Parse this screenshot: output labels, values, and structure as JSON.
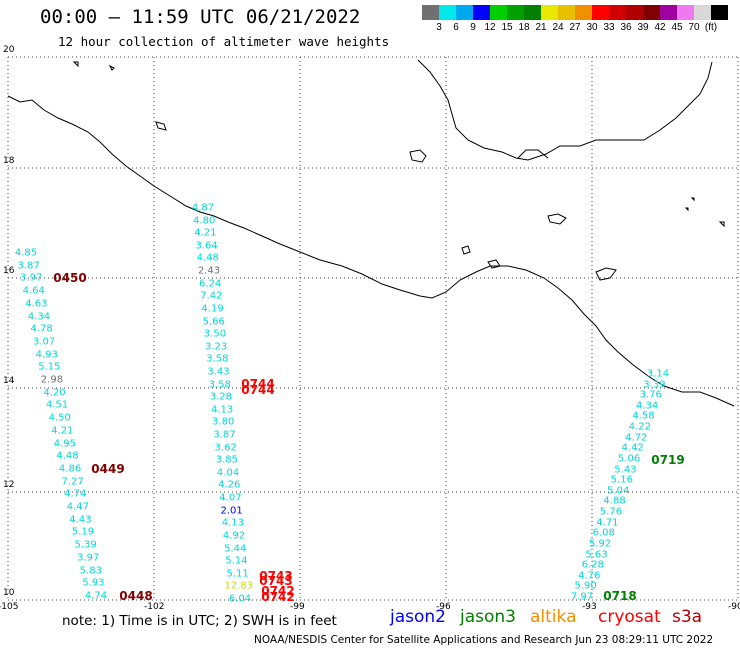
{
  "title": "00:00 — 11:59 UTC 06/21/2022",
  "subtitle": "12 hour collection of altimeter wave heights",
  "colorbar": {
    "colors": [
      "#707070",
      "#00e8e8",
      "#00a8f0",
      "#0000ff",
      "#00d000",
      "#00a000",
      "#008000",
      "#e8e800",
      "#e8c000",
      "#f09000",
      "#ff0000",
      "#d00000",
      "#b00000",
      "#800000",
      "#a000a0",
      "#f078f0",
      "#d8d8d8",
      "#000000"
    ],
    "labels": [
      "3",
      "6",
      "9",
      "12",
      "15",
      "18",
      "21",
      "24",
      "27",
      "30",
      "33",
      "36",
      "39",
      "42",
      "45",
      "70",
      "(ft)"
    ]
  },
  "axes": {
    "lat_labels": [
      "20",
      "18",
      "16",
      "14",
      "12",
      "10"
    ],
    "lon_labels": [
      "-105",
      "-102",
      "-99",
      "-96",
      "-93",
      "-90"
    ]
  },
  "passes": [
    {
      "label": "0450",
      "color": "#800000"
    },
    {
      "label": "0449",
      "color": "#800000"
    },
    {
      "label": "0448",
      "color": "#800000"
    },
    {
      "label": "0744",
      "color": "#ff0000"
    },
    {
      "label": "0744",
      "color": "#ff0000"
    },
    {
      "label": "0743",
      "color": "#ff0000"
    },
    {
      "label": "0743",
      "color": "#ff0000"
    },
    {
      "label": "0742",
      "color": "#ff0000"
    },
    {
      "label": "0742",
      "color": "#ff0000"
    },
    {
      "label": "0719",
      "color": "#008000"
    },
    {
      "label": "0718",
      "color": "#008000"
    }
  ],
  "tracks": {
    "west": [
      "4.85",
      "3.87",
      "3.97",
      "4.64",
      "4.63",
      "4.34",
      "4.78",
      "3.07",
      "4.93",
      "5.15",
      "2.98",
      "4.20",
      "4.51",
      "4.50",
      "4.21",
      "4.95",
      "4.48",
      "4.86",
      "7.27",
      "4.74",
      "4.47",
      "4.43",
      "5.19",
      "5.39",
      "3.97",
      "5.83",
      "5.93",
      "4.74"
    ],
    "middle": [
      "4.87",
      "4.80",
      "4.21",
      "3.64",
      "4.48",
      "2.43",
      "6.24",
      "7.42",
      "4.19",
      "5.66",
      "3.50",
      "3.23",
      "3.58",
      "3.43",
      "3.58",
      "3.28",
      "4.13",
      "3.80",
      "3.87",
      "3.62",
      "3.85",
      "4.04",
      "4.26",
      "4.07",
      "2.01",
      "4.13",
      "4.92",
      "5.44",
      "5.14",
      "5.11",
      "12.83",
      "6.04"
    ],
    "east": [
      "3.14",
      "3.39",
      "3.76",
      "4.34",
      "4.58",
      "4.22",
      "4.72",
      "4.42",
      "5.06",
      "5.43",
      "5.16",
      "5.04",
      "4.88",
      "5.76",
      "4.71",
      "6.08",
      "5.92",
      "5.63",
      "6.28",
      "4.76",
      "5.90",
      "7.97"
    ]
  },
  "footer": {
    "note": "note:  1) Time is in UTC;  2) SWH is in feet",
    "satellites": [
      {
        "name": "jason2",
        "color": "#0000ff"
      },
      {
        "name": "jason3",
        "color": "#008000"
      },
      {
        "name": "altika",
        "color": "#f09000"
      },
      {
        "name": "cryosat",
        "color": "#ff0000"
      },
      {
        "name": "s3a",
        "color": "#b00000"
      }
    ],
    "credit": "NOAA/NESDIS Center for Satellite Applications and Research    Jun 23 08:29:11 UTC 2022"
  }
}
